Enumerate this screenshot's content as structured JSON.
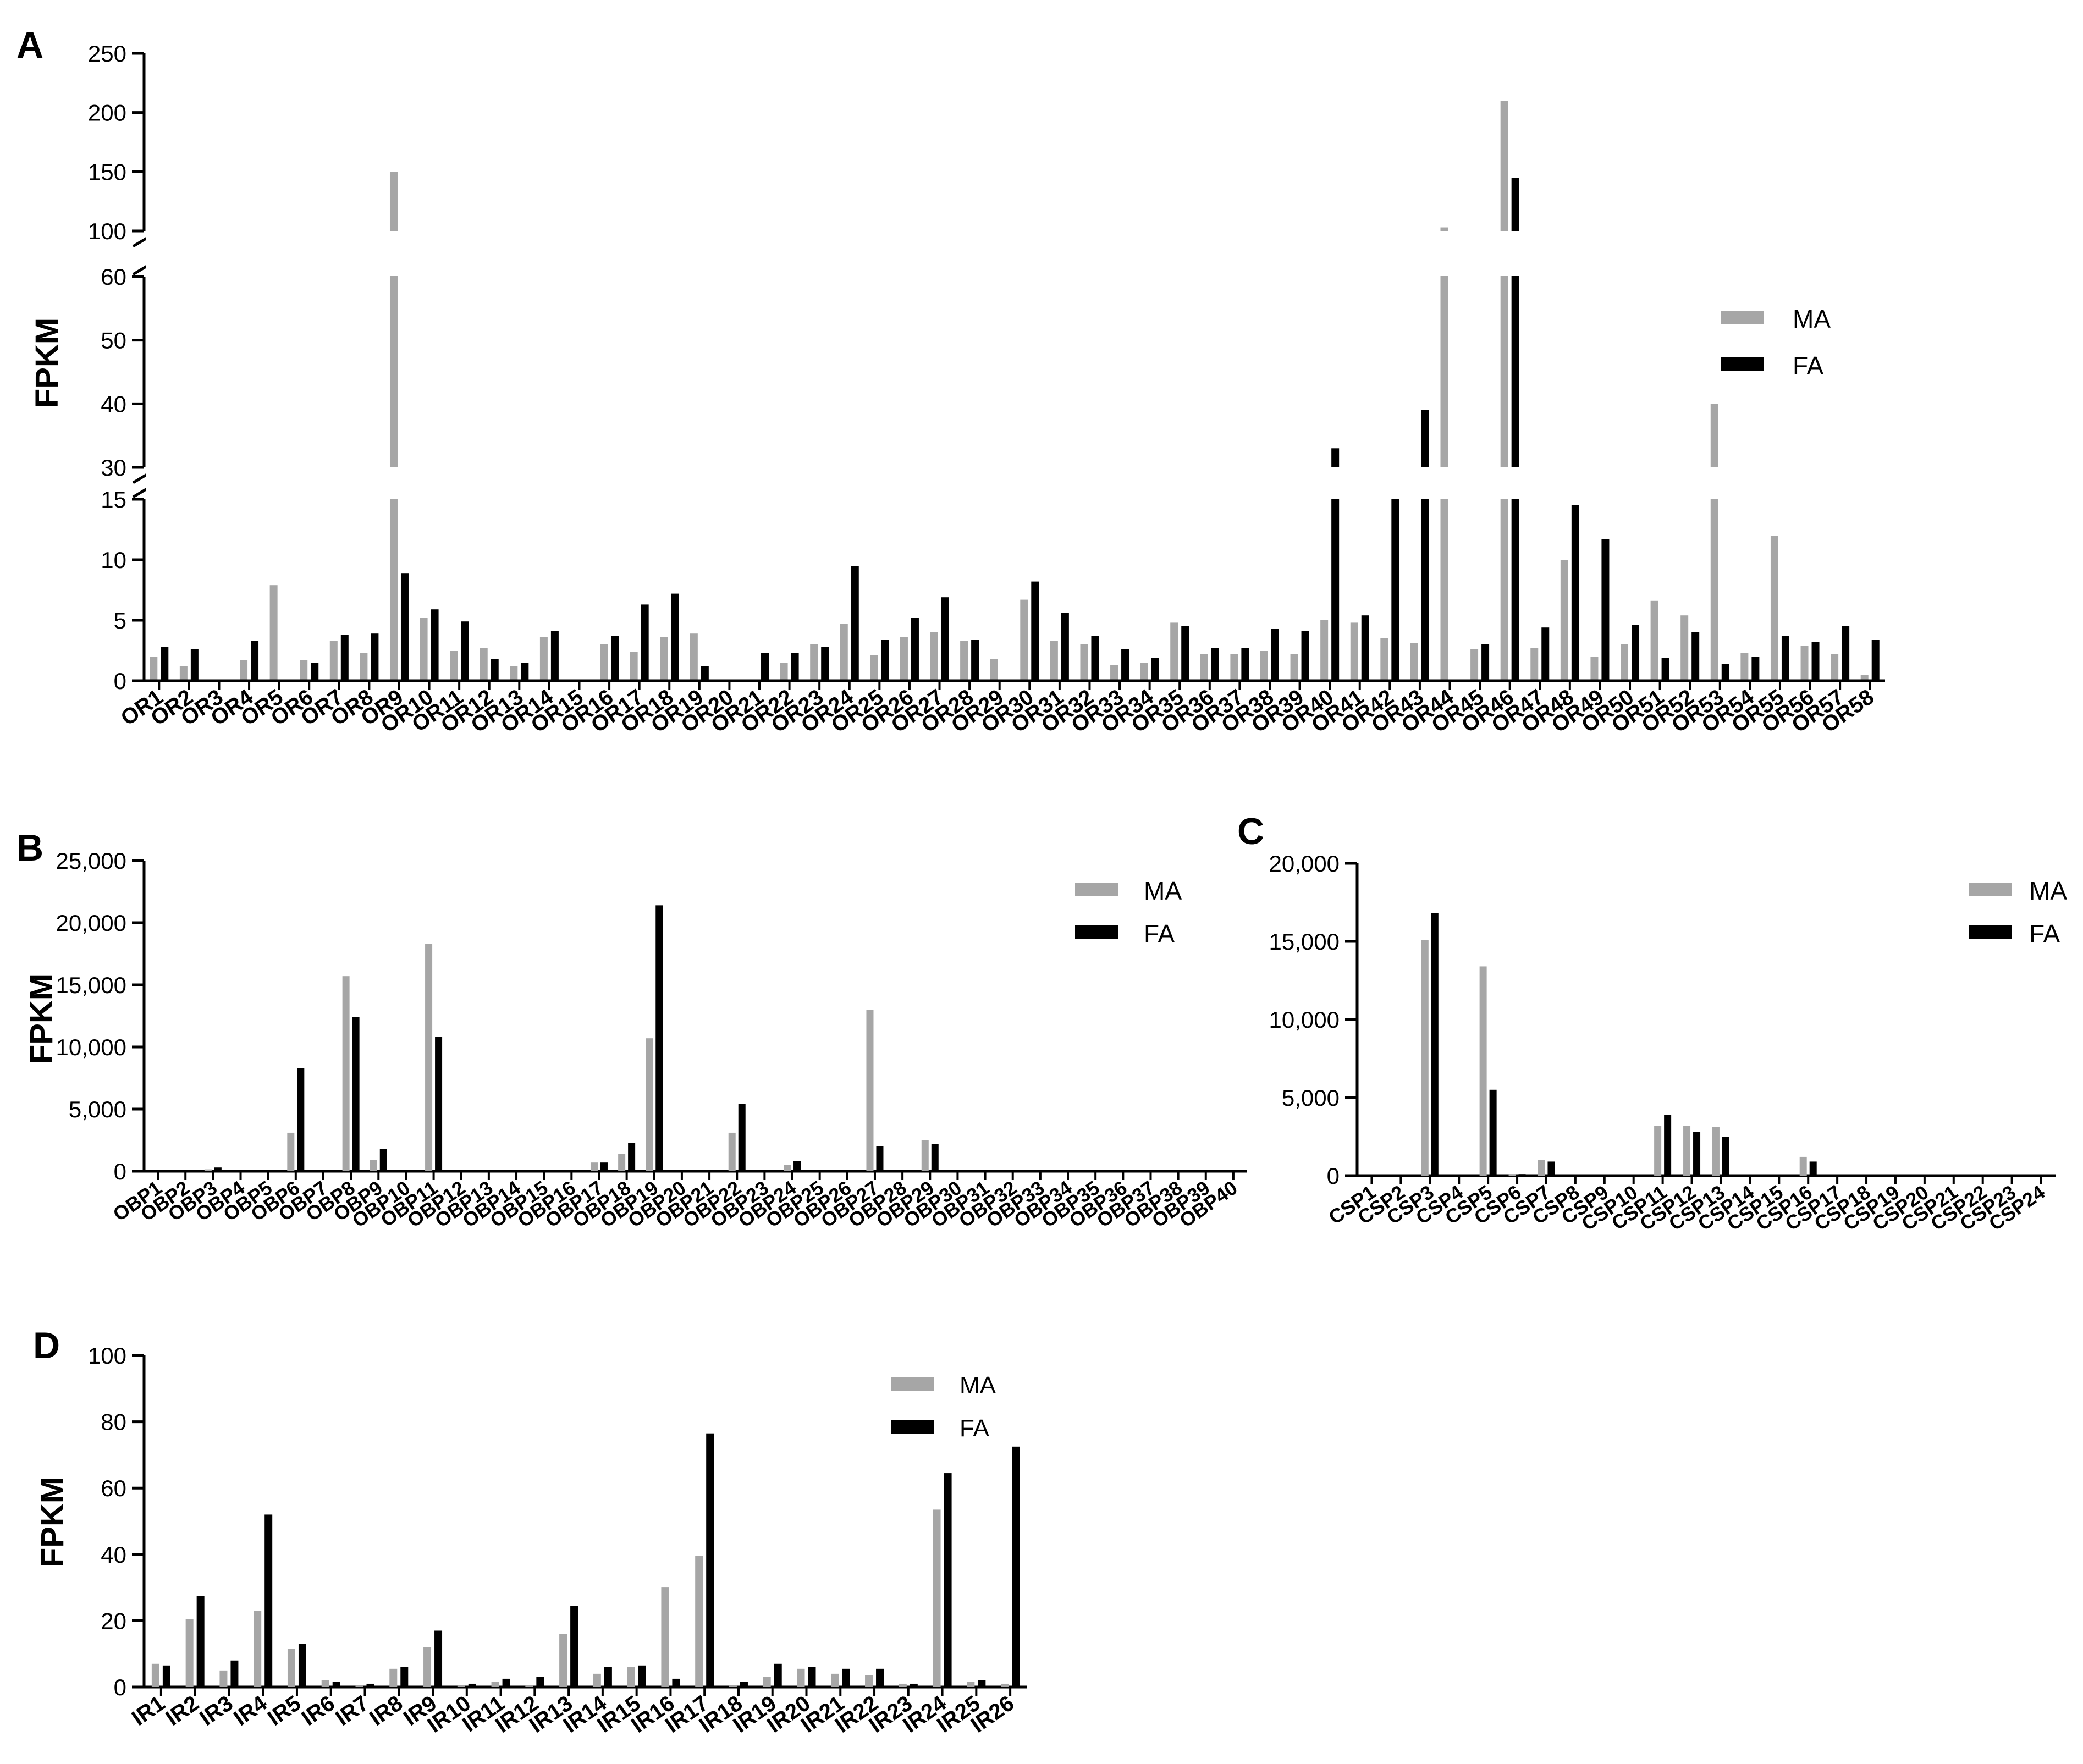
{
  "panels": [
    {
      "letter": "A",
      "ylabel": "FPKM",
      "legend": [
        {
          "name": "MA",
          "color": "#a6a6a6"
        },
        {
          "name": "FA",
          "color": "#000000"
        }
      ]
    },
    {
      "letter": "B",
      "ylabel": "FPKM",
      "legend": [
        {
          "name": "MA",
          "color": "#a6a6a6"
        },
        {
          "name": "FA",
          "color": "#000000"
        }
      ]
    },
    {
      "letter": "C",
      "ylabel": "",
      "legend": [
        {
          "name": "MA",
          "color": "#a6a6a6"
        },
        {
          "name": "FA",
          "color": "#000000"
        }
      ]
    },
    {
      "letter": "D",
      "ylabel": "FPKM",
      "legend": [
        {
          "name": "MA",
          "color": "#a6a6a6"
        },
        {
          "name": "FA",
          "color": "#000000"
        }
      ]
    }
  ],
  "chart_data": [
    {
      "type": "bar",
      "panel": "A",
      "ylabel": "FPKM",
      "broken_y_axis": [
        [
          0,
          15,
          [
            0,
            5,
            10,
            15
          ]
        ],
        [
          30,
          60,
          [
            30,
            40,
            50,
            60
          ]
        ],
        [
          100,
          250,
          [
            100,
            150,
            200,
            250
          ]
        ]
      ],
      "legend_position": "right",
      "categories": [
        "OR1",
        "OR2",
        "OR3",
        "OR4",
        "OR5",
        "OR6",
        "OR7",
        "OR8",
        "OR9",
        "OR10",
        "OR11",
        "OR12",
        "OR13",
        "OR14",
        "OR15",
        "OR16",
        "OR17",
        "OR18",
        "OR19",
        "OR20",
        "OR21",
        "OR22",
        "OR23",
        "OR24",
        "OR25",
        "OR26",
        "OR27",
        "OR28",
        "OR29",
        "OR30",
        "OR31",
        "OR32",
        "OR33",
        "OR34",
        "OR35",
        "OR36",
        "OR37",
        "OR38",
        "OR39",
        "OR40",
        "OR41",
        "OR42",
        "OR43",
        "OR44",
        "OR45",
        "OR46",
        "OR47",
        "OR48",
        "OR49",
        "OR50",
        "OR51",
        "OR52",
        "OR53",
        "OR54",
        "OR55",
        "OR56",
        "OR57",
        "OR58"
      ],
      "series": [
        {
          "name": "MA",
          "color": "#a6a6a6",
          "values": [
            2,
            1.2,
            0,
            1.7,
            7.9,
            1.7,
            3.3,
            2.3,
            150,
            5.2,
            2.5,
            2.7,
            1.2,
            3.6,
            0,
            3,
            2.4,
            3.6,
            3.9,
            0,
            0,
            1.5,
            3,
            4.7,
            2.1,
            3.6,
            4,
            3.3,
            1.8,
            6.7,
            3.3,
            3,
            1.3,
            1.5,
            4.8,
            2.2,
            2.2,
            2.5,
            2.2,
            5,
            4.8,
            3.5,
            3.1,
            103,
            2.6,
            210,
            2.7,
            10,
            2,
            3,
            6.6,
            5.4,
            40,
            2.3,
            12,
            2.9,
            2.2,
            0.5
          ]
        },
        {
          "name": "FA",
          "color": "#000000",
          "values": [
            2.8,
            2.6,
            0,
            3.3,
            0,
            1.5,
            3.8,
            3.9,
            8.9,
            5.9,
            4.9,
            1.8,
            1.5,
            4.1,
            0,
            3.7,
            6.3,
            7.2,
            1.2,
            0,
            2.3,
            2.3,
            2.8,
            9.5,
            3.4,
            5.2,
            6.9,
            3.4,
            0,
            8.2,
            5.6,
            3.7,
            2.6,
            1.9,
            4.5,
            2.7,
            2.7,
            4.3,
            4.1,
            33,
            5.4,
            20,
            39,
            0,
            3,
            145,
            4.4,
            14.5,
            11.7,
            4.6,
            1.9,
            4,
            1.4,
            2,
            3.7,
            3.2,
            4.5,
            3.4
          ]
        }
      ]
    },
    {
      "type": "bar",
      "panel": "B",
      "ylabel": "FPKM",
      "ylim": [
        0,
        25000
      ],
      "yticks": [
        "0",
        "5,000",
        "10,000",
        "15,000",
        "20,000",
        "25,000"
      ],
      "legend_position": "top-right",
      "categories": [
        "OBP1",
        "OBP2",
        "OBP3",
        "OBP4",
        "OBP5",
        "OBP6",
        "OBP7",
        "OBP8",
        "OBP9",
        "OBP10",
        "OBP11",
        "OBP12",
        "OBP13",
        "OBP14",
        "OBP15",
        "OBP16",
        "OBP17",
        "OBP18",
        "OBP19",
        "OBP20",
        "OBP21",
        "OBP22",
        "OBP23",
        "OBP24",
        "OBP25",
        "OBP26",
        "OBP27",
        "OBP28",
        "OBP29",
        "OBP30",
        "OBP31",
        "OBP32",
        "OBP33",
        "OBP34",
        "OBP35",
        "OBP36",
        "OBP37",
        "OBP38",
        "OBP39",
        "OBP40"
      ],
      "series": [
        {
          "name": "MA",
          "color": "#a6a6a6",
          "values": [
            0,
            0,
            150,
            0,
            0,
            3100,
            0,
            15700,
            900,
            0,
            18300,
            0,
            0,
            0,
            0,
            0,
            700,
            1400,
            10700,
            0,
            0,
            3100,
            0,
            500,
            0,
            0,
            13000,
            0,
            2500,
            0,
            0,
            0,
            0,
            0,
            0,
            0,
            0,
            0,
            0,
            0
          ]
        },
        {
          "name": "FA",
          "color": "#000000",
          "values": [
            0,
            0,
            300,
            0,
            0,
            8300,
            0,
            12400,
            1800,
            0,
            10800,
            0,
            0,
            0,
            0,
            0,
            700,
            2300,
            21400,
            0,
            0,
            5400,
            0,
            800,
            0,
            0,
            2000,
            0,
            2200,
            0,
            0,
            0,
            100,
            0,
            0,
            0,
            0,
            0,
            0,
            0
          ]
        }
      ]
    },
    {
      "type": "bar",
      "panel": "C",
      "ylabel": "",
      "ylim": [
        0,
        20000
      ],
      "yticks": [
        "0",
        "5,000",
        "10,000",
        "15,000",
        "20,000"
      ],
      "legend_position": "top-right",
      "categories": [
        "CSP1",
        "CSP2",
        "CSP3",
        "CSP4",
        "CSP5",
        "CSP6",
        "CSP7",
        "CSP8",
        "CSP9",
        "CSP10",
        "CSP11",
        "CSP12",
        "CSP13",
        "CSP14",
        "CSP15",
        "CSP16",
        "CSP17",
        "CSP18",
        "CSP19",
        "CSP20",
        "CSP21",
        "CSP22",
        "CSP23",
        "CSP24"
      ],
      "series": [
        {
          "name": "MA",
          "color": "#a6a6a6",
          "values": [
            0,
            0,
            15100,
            0,
            13400,
            100,
            1000,
            0,
            0,
            0,
            3200,
            3200,
            3100,
            0,
            0,
            1200,
            0,
            0,
            0,
            0,
            0,
            0,
            0,
            0
          ]
        },
        {
          "name": "FA",
          "color": "#000000",
          "values": [
            0,
            0,
            16800,
            0,
            5500,
            100,
            900,
            0,
            0,
            0,
            3900,
            2800,
            2500,
            0,
            0,
            900,
            0,
            0,
            0,
            0,
            0,
            0,
            0,
            0
          ]
        }
      ]
    },
    {
      "type": "bar",
      "panel": "D",
      "ylabel": "FPKM",
      "ylim": [
        0,
        100
      ],
      "yticks": [
        "0",
        "20",
        "40",
        "60",
        "80",
        "100"
      ],
      "legend_position": "top-right",
      "categories": [
        "IR1",
        "IR2",
        "IR3",
        "IR4",
        "IR5",
        "IR6",
        "IR7",
        "IR8",
        "IR9",
        "IR10",
        "IR11",
        "IR12",
        "IR13",
        "IR14",
        "IR15",
        "IR16",
        "IR17",
        "IR18",
        "IR19",
        "IR20",
        "IR21",
        "IR22",
        "IR23",
        "IR24",
        "IR25",
        "IR26"
      ],
      "series": [
        {
          "name": "MA",
          "color": "#a6a6a6",
          "values": [
            7,
            20.5,
            5,
            23,
            11.5,
            2,
            0.5,
            5.5,
            12,
            0.5,
            1.5,
            0.5,
            16,
            4,
            6,
            30,
            39.5,
            0.5,
            3,
            5.5,
            4,
            3.5,
            1,
            53.5,
            1.5,
            1
          ]
        },
        {
          "name": "FA",
          "color": "#000000",
          "values": [
            6.5,
            27.5,
            8,
            52,
            13,
            1.5,
            1,
            6,
            17,
            1,
            2.5,
            3,
            24.5,
            6,
            6.5,
            2.5,
            76.5,
            1.5,
            7,
            6,
            5.5,
            5.5,
            1,
            64.5,
            2,
            72.5
          ]
        }
      ]
    }
  ]
}
